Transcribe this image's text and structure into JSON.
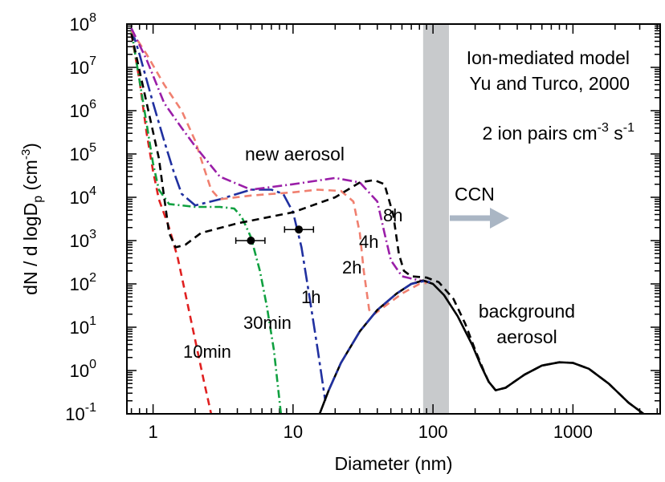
{
  "chart_data": {
    "type": "line",
    "xlabel": "Diameter (nm)",
    "ylabel": {
      "main": "dN / d logD",
      "sub": "p",
      "unit_open": " (cm",
      "unit_sup": "-3",
      "unit_close": ")"
    },
    "xscale": "log",
    "yscale": "log",
    "xlim": [
      0.65,
      4200
    ],
    "ylim": [
      0.1,
      100000000
    ],
    "x_ticks": [
      {
        "v": 1,
        "label": "1"
      },
      {
        "v": 10,
        "label": "10"
      },
      {
        "v": 100,
        "label": "100"
      },
      {
        "v": 1000,
        "label": "1000"
      }
    ],
    "y_ticks": [
      {
        "v": 0.1,
        "base": "10",
        "exp": "-1"
      },
      {
        "v": 1,
        "base": "10",
        "exp": "0"
      },
      {
        "v": 10,
        "base": "10",
        "exp": "1"
      },
      {
        "v": 100,
        "base": "10",
        "exp": "2"
      },
      {
        "v": 1000,
        "base": "10",
        "exp": "3"
      },
      {
        "v": 10000,
        "base": "10",
        "exp": "4"
      },
      {
        "v": 100000,
        "base": "10",
        "exp": "5"
      },
      {
        "v": 1000000,
        "base": "10",
        "exp": "6"
      },
      {
        "v": 10000000,
        "base": "10",
        "exp": "7"
      },
      {
        "v": 100000000,
        "base": "10",
        "exp": "8"
      }
    ],
    "annotations": {
      "model_line1": "Ion-mediated model",
      "model_line2": "Yu and Turco, 2000",
      "ion_main": "2 ion pairs cm",
      "ion_sup1": "-3",
      "ion_s": " s",
      "ion_sup2": "-1",
      "new_aerosol": "new aerosol",
      "ccn": "CCN",
      "background1": "background",
      "background2": "aerosol"
    },
    "ccn_band": {
      "x_from": 85,
      "x_to": 130,
      "color": "#c8cacc"
    },
    "arrow_color": "#aab6c4",
    "series": [
      {
        "label": "10min",
        "color": "#e02020",
        "dash": "9,6",
        "points": [
          [
            0.7,
            60000000
          ],
          [
            0.8,
            5000000
          ],
          [
            0.9,
            300000
          ],
          [
            1.0,
            40000
          ],
          [
            1.1,
            9000
          ],
          [
            1.3,
            2000
          ],
          [
            1.5,
            400
          ],
          [
            1.7,
            60
          ],
          [
            2.0,
            5
          ],
          [
            2.3,
            0.6
          ],
          [
            2.6,
            0.1
          ]
        ]
      },
      {
        "label": "30min",
        "color": "#10a040",
        "dash": "10,4,2,4",
        "points": [
          [
            0.7,
            70000000
          ],
          [
            0.8,
            5000000
          ],
          [
            0.9,
            500000
          ],
          [
            1.0,
            60000
          ],
          [
            1.1,
            15000
          ],
          [
            1.3,
            7000
          ],
          [
            2.0,
            6000
          ],
          [
            3.0,
            6000
          ],
          [
            3.8,
            5500
          ],
          [
            4.3,
            3500
          ],
          [
            5.0,
            1200
          ],
          [
            5.8,
            200
          ],
          [
            6.5,
            30
          ],
          [
            7.3,
            3
          ],
          [
            8.2,
            0.1
          ]
        ]
      },
      {
        "label": "1h",
        "color": "#2030a0",
        "dash": "18,5,4,5",
        "points": [
          [
            0.7,
            80000000
          ],
          [
            0.8,
            20000000
          ],
          [
            1.0,
            1500000
          ],
          [
            1.2,
            200000
          ],
          [
            1.4,
            40000
          ],
          [
            1.6,
            12000
          ],
          [
            2.0,
            6500
          ],
          [
            3.0,
            9000
          ],
          [
            5.0,
            15000
          ],
          [
            7.0,
            15000
          ],
          [
            8.5,
            12000
          ],
          [
            10.0,
            4500
          ],
          [
            11.5,
            700
          ],
          [
            13.0,
            60
          ],
          [
            15.0,
            3
          ],
          [
            17.0,
            0.2
          ]
        ]
      },
      {
        "label": "2h",
        "color": "#f08070",
        "dash": "9,6",
        "points": [
          [
            0.7,
            70000000
          ],
          [
            0.9,
            20000000
          ],
          [
            1.2,
            4000000
          ],
          [
            1.6,
            1000000
          ],
          [
            2.0,
            200000
          ],
          [
            2.3,
            50000
          ],
          [
            2.6,
            15000
          ],
          [
            3.0,
            9000
          ],
          [
            5.0,
            11000
          ],
          [
            10.0,
            13000
          ],
          [
            15.0,
            15000
          ],
          [
            22.0,
            14000
          ],
          [
            27.0,
            8000
          ],
          [
            30.0,
            1500
          ],
          [
            32.0,
            200
          ],
          [
            35.0,
            25
          ],
          [
            38.0,
            20
          ],
          [
            45.0,
            30
          ],
          [
            60.0,
            60
          ],
          [
            80.0,
            100
          ],
          [
            90.0,
            105
          ]
        ]
      },
      {
        "label": "4h",
        "color": "#9a1ea8",
        "dash": "12,4,2,4",
        "points": [
          [
            0.7,
            80000000
          ],
          [
            0.9,
            15000000
          ],
          [
            1.2,
            1500000
          ],
          [
            1.6,
            400000
          ],
          [
            2.0,
            150000
          ],
          [
            3.0,
            30000
          ],
          [
            5.0,
            15000
          ],
          [
            10.0,
            20000
          ],
          [
            20.0,
            28000
          ],
          [
            30.0,
            22000
          ],
          [
            40.0,
            8000
          ],
          [
            45.0,
            1500
          ],
          [
            50.0,
            350
          ],
          [
            60.0,
            150
          ],
          [
            80.0,
            120
          ],
          [
            90.0,
            115
          ]
        ]
      },
      {
        "label": "8h",
        "color": "#000000",
        "dash": "9,6",
        "points": [
          [
            0.7,
            60000000
          ],
          [
            0.9,
            1500000
          ],
          [
            1.1,
            80000
          ],
          [
            1.2,
            10000
          ],
          [
            1.3,
            1500
          ],
          [
            1.45,
            700
          ],
          [
            1.7,
            800
          ],
          [
            2.2,
            1500
          ],
          [
            4.0,
            2500
          ],
          [
            10.0,
            4500
          ],
          [
            20.0,
            10000
          ],
          [
            30.0,
            22000
          ],
          [
            38.0,
            25000
          ],
          [
            45.0,
            20000
          ],
          [
            52.0,
            4000
          ],
          [
            57.0,
            500
          ],
          [
            62.0,
            200
          ],
          [
            70.0,
            150
          ],
          [
            90.0,
            140
          ],
          [
            110.0,
            110
          ],
          [
            140.0,
            45
          ],
          [
            170.0,
            12
          ],
          [
            200.0,
            3
          ],
          [
            230.0,
            1
          ],
          [
            250.0,
            0.55
          ],
          [
            280.0,
            0.35
          ],
          [
            330.0,
            0.4
          ],
          [
            450.0,
            0.8
          ],
          [
            600.0,
            1.3
          ],
          [
            800.0,
            1.55
          ],
          [
            1000.0,
            1.5
          ],
          [
            1300.0,
            1.1
          ],
          [
            1800.0,
            0.5
          ],
          [
            2500.0,
            0.18
          ],
          [
            3200.0,
            0.1
          ]
        ]
      },
      {
        "label": "background",
        "color": "#000000",
        "dash": "",
        "points": [
          [
            15.5,
            0.1
          ],
          [
            18.0,
            0.35
          ],
          [
            22.0,
            1.5
          ],
          [
            30.0,
            8
          ],
          [
            40.0,
            25
          ],
          [
            55.0,
            60
          ],
          [
            70.0,
            100
          ],
          [
            85.0,
            120
          ],
          [
            100.0,
            100
          ],
          [
            120.0,
            55
          ],
          [
            150.0,
            18
          ],
          [
            190.0,
            4
          ],
          [
            220.0,
            1.3
          ],
          [
            250.0,
            0.55
          ],
          [
            280.0,
            0.35
          ],
          [
            330.0,
            0.4
          ],
          [
            450.0,
            0.8
          ],
          [
            600.0,
            1.3
          ],
          [
            800.0,
            1.55
          ],
          [
            1000.0,
            1.5
          ],
          [
            1300.0,
            1.1
          ],
          [
            1800.0,
            0.5
          ],
          [
            2500.0,
            0.18
          ],
          [
            3200.0,
            0.1
          ]
        ]
      }
    ],
    "overlay_series": {
      "color": "#2030a0",
      "dash": "18,5,4,5",
      "points": [
        [
          18.0,
          0.35
        ],
        [
          22.0,
          1.5
        ],
        [
          30.0,
          8
        ],
        [
          40.0,
          25
        ],
        [
          55.0,
          60
        ],
        [
          70.0,
          100
        ],
        [
          85.0,
          115
        ],
        [
          95.0,
          110
        ]
      ]
    },
    "observations": [
      {
        "x": 5.0,
        "y": 1000,
        "xerr": [
          3.9,
          6.3
        ]
      },
      {
        "x": 11.0,
        "y": 1800,
        "xerr": [
          8.7,
          14.0
        ]
      }
    ],
    "curve_labels": [
      {
        "series": "10min",
        "text": "10min"
      },
      {
        "series": "30min",
        "text": "30min"
      },
      {
        "series": "1h",
        "text": "1h"
      },
      {
        "series": "2h",
        "text": "2h"
      },
      {
        "series": "4h",
        "text": "4h"
      },
      {
        "series": "8h",
        "text": "8h"
      }
    ]
  }
}
